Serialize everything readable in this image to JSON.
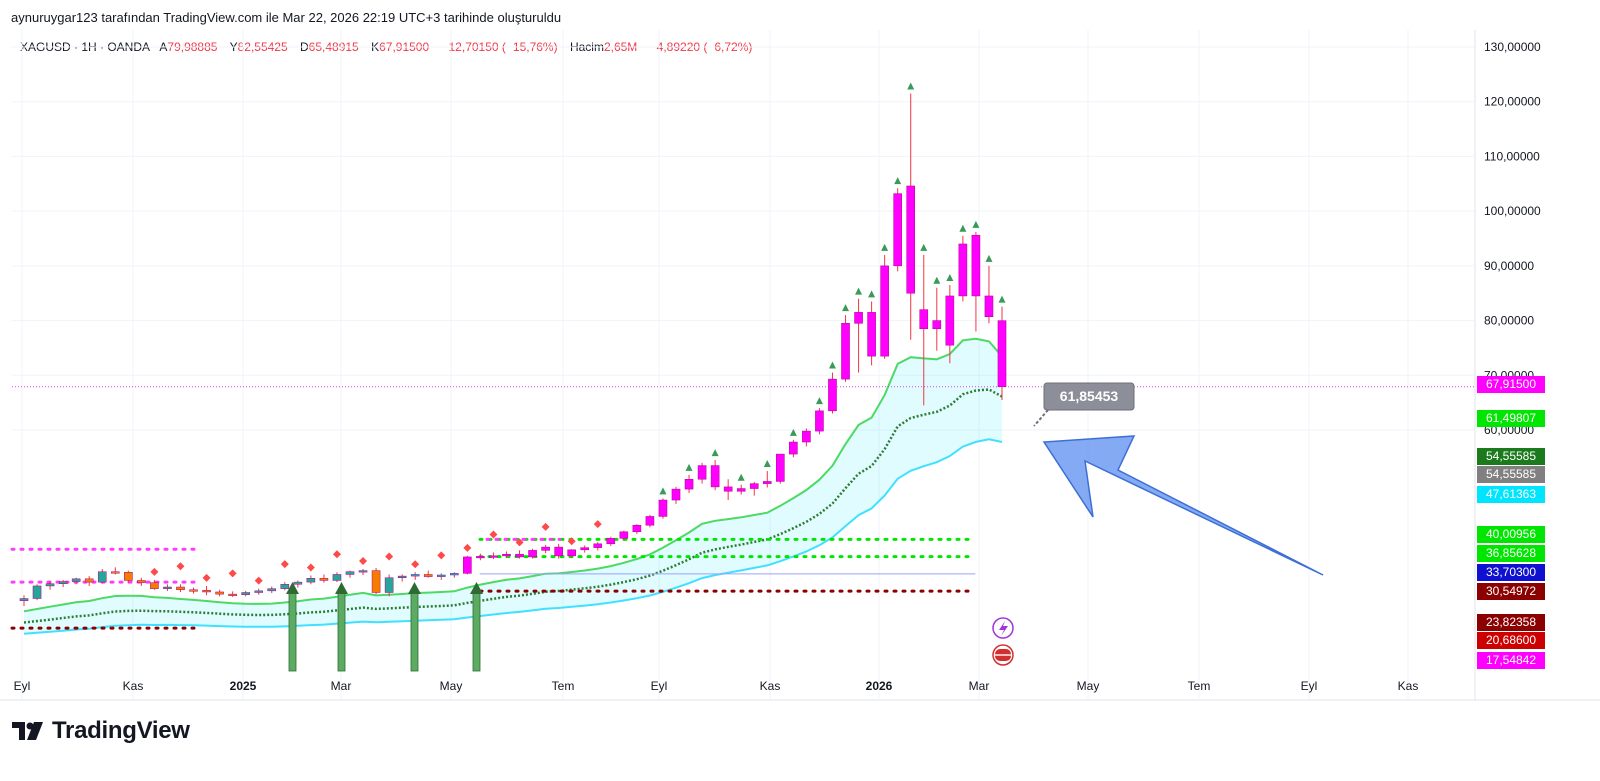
{
  "header": {
    "attribution": "aynuruygar123 tarafından TradingView.com ile Mar 22, 2026 22:19 UTC+3 tarihinde oluşturuldu"
  },
  "symbol": {
    "name": "XAGUSD · 1H · OANDA",
    "open_label": "A",
    "open": "79,98885",
    "high_label": "Y",
    "high": "82,55425",
    "low_label": "D",
    "low": "65,48915",
    "close_label": "K",
    "close": "67,91500",
    "change": "−12,70150 (−15,76%)",
    "volume_label": "Hacim",
    "volume": "2,65M",
    "volume_change": "−4,89220 (−6,72%)"
  },
  "brand": {
    "name": "TradingView"
  },
  "colors": {
    "bull_body": "#ff00ff",
    "bear_body": "#ff00ff",
    "wick": "#f23645",
    "price_line": "#e040fb",
    "grid": "#f0f3fa",
    "arrow": "#5b8def"
  },
  "annotation": {
    "callout": "61,85453"
  },
  "chart_data": {
    "type": "candlestick",
    "y_axis": {
      "range": [
        17,
        132
      ],
      "ticks": [
        "130,00000",
        "120,00000",
        "110,00000",
        "100,00000",
        "90,00000",
        "80,00000",
        "70,00000",
        "60,00000"
      ]
    },
    "x_axis": {
      "labels": [
        {
          "text": "Eyl",
          "bold": false
        },
        {
          "text": "Kas",
          "bold": false
        },
        {
          "text": "2025",
          "bold": true
        },
        {
          "text": "Mar",
          "bold": false
        },
        {
          "text": "May",
          "bold": false
        },
        {
          "text": "Tem",
          "bold": false
        },
        {
          "text": "Eyl",
          "bold": false
        },
        {
          "text": "Kas",
          "bold": false
        },
        {
          "text": "2026",
          "bold": true
        },
        {
          "text": "Mar",
          "bold": false
        },
        {
          "text": "May",
          "bold": false
        },
        {
          "text": "Tem",
          "bold": false
        },
        {
          "text": "Eyl",
          "bold": false
        },
        {
          "text": "Kas",
          "bold": false
        }
      ]
    },
    "price_tags": [
      {
        "value": 67.915,
        "text": "67,91500",
        "color": "#ff00ff"
      },
      {
        "value": 61.498,
        "text": "61,49807",
        "color": "#00e600"
      },
      {
        "value": 54.556,
        "text": "54,55585",
        "color": "#1b7a1b"
      },
      {
        "value": 54.556,
        "text": "54,55585",
        "color": "#808080"
      },
      {
        "value": 47.614,
        "text": "47,61363",
        "color": "#00e5ff"
      },
      {
        "value": 40.01,
        "text": "40,00956",
        "color": "#00e600"
      },
      {
        "value": 36.856,
        "text": "36,85628",
        "color": "#00e600"
      },
      {
        "value": 33.703,
        "text": "33,70300",
        "color": "#1010d0"
      },
      {
        "value": 30.55,
        "text": "30,54972",
        "color": "#8b0000"
      },
      {
        "value": 23.824,
        "text": "23,82358",
        "color": "#8b0000"
      },
      {
        "value": 20.686,
        "text": "20,68600",
        "color": "#cc0000"
      },
      {
        "value": 17.548,
        "text": "17,54842",
        "color": "#ff00ff"
      }
    ],
    "candles": [
      {
        "o": 28.8,
        "h": 29.8,
        "l": 27.8,
        "c": 29.2
      },
      {
        "o": 29.2,
        "h": 31.8,
        "l": 28.9,
        "c": 31.5
      },
      {
        "o": 31.5,
        "h": 32.4,
        "l": 30.8,
        "c": 31.9
      },
      {
        "o": 31.9,
        "h": 32.6,
        "l": 31.3,
        "c": 32.3
      },
      {
        "o": 32.3,
        "h": 33.0,
        "l": 31.8,
        "c": 32.8
      },
      {
        "o": 32.8,
        "h": 33.3,
        "l": 31.5,
        "c": 32.2
      },
      {
        "o": 32.2,
        "h": 34.6,
        "l": 32.0,
        "c": 34.1
      },
      {
        "o": 34.1,
        "h": 34.9,
        "l": 33.6,
        "c": 34.0
      },
      {
        "o": 34.0,
        "h": 34.3,
        "l": 32.0,
        "c": 32.5
      },
      {
        "o": 32.5,
        "h": 33.0,
        "l": 31.5,
        "c": 32.1
      },
      {
        "o": 32.1,
        "h": 32.6,
        "l": 30.8,
        "c": 31.0
      },
      {
        "o": 31.0,
        "h": 31.8,
        "l": 30.6,
        "c": 31.3
      },
      {
        "o": 31.3,
        "h": 31.8,
        "l": 30.4,
        "c": 30.8
      },
      {
        "o": 30.8,
        "h": 31.2,
        "l": 30.1,
        "c": 30.7
      },
      {
        "o": 30.7,
        "h": 31.5,
        "l": 29.8,
        "c": 30.4
      },
      {
        "o": 30.4,
        "h": 30.8,
        "l": 29.6,
        "c": 30.0
      },
      {
        "o": 30.0,
        "h": 30.5,
        "l": 29.5,
        "c": 29.9
      },
      {
        "o": 29.9,
        "h": 30.6,
        "l": 29.6,
        "c": 30.3
      },
      {
        "o": 30.3,
        "h": 31.0,
        "l": 29.9,
        "c": 30.6
      },
      {
        "o": 30.6,
        "h": 31.4,
        "l": 30.2,
        "c": 31.0
      },
      {
        "o": 31.0,
        "h": 32.2,
        "l": 30.7,
        "c": 31.8
      },
      {
        "o": 31.8,
        "h": 32.5,
        "l": 31.2,
        "c": 32.2
      },
      {
        "o": 32.2,
        "h": 33.4,
        "l": 31.8,
        "c": 32.9
      },
      {
        "o": 32.9,
        "h": 33.6,
        "l": 32.1,
        "c": 32.5
      },
      {
        "o": 32.5,
        "h": 34.0,
        "l": 32.2,
        "c": 33.6
      },
      {
        "o": 33.6,
        "h": 34.3,
        "l": 33.0,
        "c": 34.1
      },
      {
        "o": 34.1,
        "h": 34.6,
        "l": 33.5,
        "c": 34.3
      },
      {
        "o": 34.3,
        "h": 34.8,
        "l": 30.0,
        "c": 30.3
      },
      {
        "o": 30.3,
        "h": 33.6,
        "l": 29.6,
        "c": 33.0
      },
      {
        "o": 33.0,
        "h": 33.6,
        "l": 32.3,
        "c": 33.3
      },
      {
        "o": 33.3,
        "h": 34.0,
        "l": 32.6,
        "c": 33.6
      },
      {
        "o": 33.6,
        "h": 34.3,
        "l": 33.0,
        "c": 33.2
      },
      {
        "o": 33.2,
        "h": 33.8,
        "l": 32.6,
        "c": 33.5
      },
      {
        "o": 33.5,
        "h": 34.0,
        "l": 33.0,
        "c": 33.8
      },
      {
        "o": 33.8,
        "h": 37.0,
        "l": 33.6,
        "c": 36.8
      },
      {
        "o": 36.8,
        "h": 37.4,
        "l": 36.2,
        "c": 36.9
      },
      {
        "o": 36.9,
        "h": 37.6,
        "l": 36.4,
        "c": 37.0
      },
      {
        "o": 37.0,
        "h": 37.8,
        "l": 36.6,
        "c": 37.3
      },
      {
        "o": 37.3,
        "h": 38.0,
        "l": 36.5,
        "c": 36.8
      },
      {
        "o": 36.8,
        "h": 38.3,
        "l": 36.5,
        "c": 38.0
      },
      {
        "o": 38.0,
        "h": 39.0,
        "l": 37.5,
        "c": 38.6
      },
      {
        "o": 38.6,
        "h": 39.2,
        "l": 36.5,
        "c": 37.0
      },
      {
        "o": 37.0,
        "h": 38.2,
        "l": 36.6,
        "c": 38.1
      },
      {
        "o": 38.1,
        "h": 38.9,
        "l": 37.6,
        "c": 38.5
      },
      {
        "o": 38.5,
        "h": 39.5,
        "l": 38.0,
        "c": 39.2
      },
      {
        "o": 39.2,
        "h": 40.5,
        "l": 38.8,
        "c": 40.2
      },
      {
        "o": 40.2,
        "h": 41.6,
        "l": 39.8,
        "c": 41.4
      },
      {
        "o": 41.4,
        "h": 42.8,
        "l": 41.0,
        "c": 42.6
      },
      {
        "o": 42.6,
        "h": 44.5,
        "l": 42.2,
        "c": 44.2
      },
      {
        "o": 44.2,
        "h": 47.5,
        "l": 43.8,
        "c": 47.2
      },
      {
        "o": 47.2,
        "h": 49.6,
        "l": 46.5,
        "c": 49.2
      },
      {
        "o": 49.2,
        "h": 51.8,
        "l": 48.5,
        "c": 51.0
      },
      {
        "o": 51.0,
        "h": 54.0,
        "l": 50.2,
        "c": 53.5
      },
      {
        "o": 53.5,
        "h": 54.5,
        "l": 49.0,
        "c": 49.6
      },
      {
        "o": 49.6,
        "h": 51.0,
        "l": 47.2,
        "c": 48.8
      },
      {
        "o": 48.8,
        "h": 50.0,
        "l": 48.2,
        "c": 49.3
      },
      {
        "o": 49.3,
        "h": 50.5,
        "l": 48.0,
        "c": 50.2
      },
      {
        "o": 50.2,
        "h": 52.5,
        "l": 49.5,
        "c": 50.6
      },
      {
        "o": 50.6,
        "h": 55.6,
        "l": 50.2,
        "c": 55.6
      },
      {
        "o": 55.6,
        "h": 58.2,
        "l": 55.0,
        "c": 57.8
      },
      {
        "o": 57.8,
        "h": 60.3,
        "l": 57.0,
        "c": 59.8
      },
      {
        "o": 59.8,
        "h": 64.0,
        "l": 59.2,
        "c": 63.5
      },
      {
        "o": 63.5,
        "h": 70.5,
        "l": 63.0,
        "c": 69.3
      },
      {
        "o": 69.3,
        "h": 81.0,
        "l": 68.8,
        "c": 79.5
      },
      {
        "o": 79.5,
        "h": 84.0,
        "l": 70.5,
        "c": 81.5
      },
      {
        "o": 81.5,
        "h": 83.5,
        "l": 71.8,
        "c": 73.5
      },
      {
        "o": 73.5,
        "h": 92.0,
        "l": 73.0,
        "c": 90.0
      },
      {
        "o": 90.0,
        "h": 104.2,
        "l": 89.0,
        "c": 103.2
      },
      {
        "o": 104.6,
        "h": 121.5,
        "l": 76.5,
        "c": 85.0
      },
      {
        "o": 82.0,
        "h": 92.0,
        "l": 64.5,
        "c": 78.5
      },
      {
        "o": 80.0,
        "h": 86.0,
        "l": 74.5,
        "c": 78.5
      },
      {
        "o": 75.5,
        "h": 86.5,
        "l": 72.2,
        "c": 84.5
      },
      {
        "o": 84.5,
        "h": 95.5,
        "l": 83.5,
        "c": 94.0
      },
      {
        "o": 95.6,
        "h": 96.2,
        "l": 78.0,
        "c": 84.5
      },
      {
        "o": 84.5,
        "h": 90.0,
        "l": 79.5,
        "c": 80.7
      },
      {
        "o": 79.98885,
        "h": 82.55425,
        "l": 65.48915,
        "c": 67.915
      }
    ],
    "overlays": {
      "upper_band": "rising green moving average line (upper edge of band)",
      "middle_line": "dark green dotted moving average",
      "lower_band": "cyan moving average line (lower edge of band)"
    },
    "markers": {
      "up_triangles": "green triangle markers above candles",
      "up_arrows": "green vertical arrow markers from bottom",
      "red_diamonds": "red diamond markers above candles"
    },
    "grid": true
  }
}
